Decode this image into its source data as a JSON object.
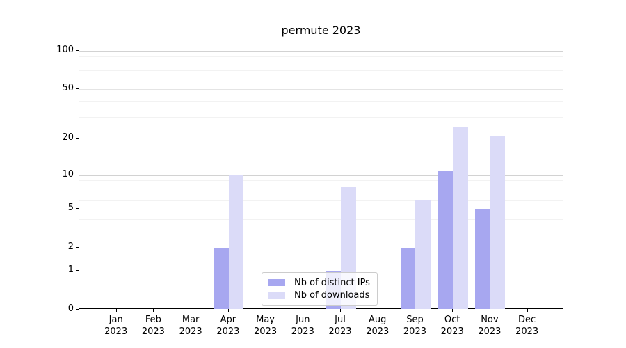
{
  "title": "permute 2023",
  "chart_data": {
    "type": "bar",
    "title": "permute 2023",
    "categories": [
      "Jan 2023",
      "Feb 2023",
      "Mar 2023",
      "Apr 2023",
      "May 2023",
      "Jun 2023",
      "Jul 2023",
      "Aug 2023",
      "Sep 2023",
      "Oct 2023",
      "Nov 2023",
      "Dec 2023"
    ],
    "series": [
      {
        "name": "Nb of distinct IPs",
        "color": "#a7a7f0",
        "values": [
          0,
          0,
          0,
          2,
          0,
          0,
          1,
          0,
          2,
          11,
          5,
          0
        ]
      },
      {
        "name": "Nb of downloads",
        "color": "#dbdbf8",
        "values": [
          0,
          0,
          0,
          10,
          0,
          0,
          8,
          0,
          6,
          25,
          21,
          0
        ]
      }
    ],
    "yscale": "log1p",
    "yticks": [
      0,
      1,
      2,
      5,
      10,
      20,
      50,
      100
    ],
    "minor_gridline_values": [
      3,
      4,
      6,
      7,
      8,
      9,
      30,
      40,
      60,
      70,
      80,
      90
    ],
    "ylim": [
      0,
      116
    ],
    "xlabel": "",
    "ylabel": "",
    "grid": "horizontal",
    "legend_position": "lower center"
  }
}
